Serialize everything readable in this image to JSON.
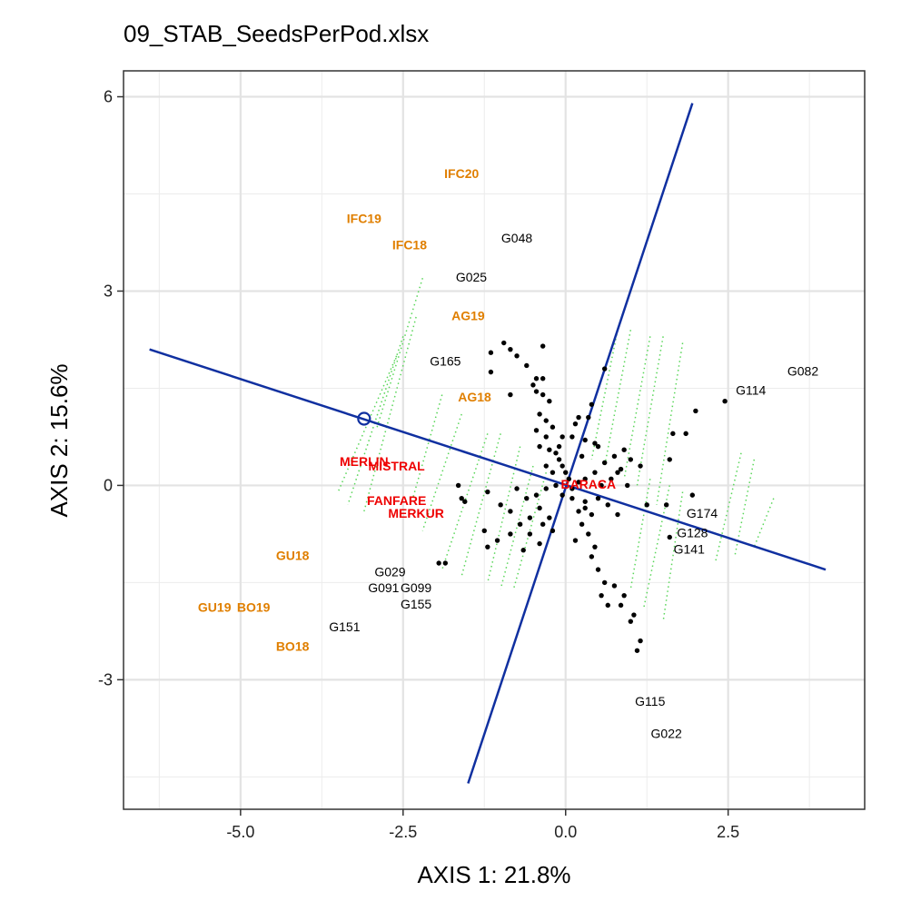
{
  "chart_data": {
    "type": "scatter",
    "title": "09_STAB_SeedsPerPod.xlsx",
    "xlabel": "AXIS 1: 21.8%",
    "ylabel": "AXIS 2: 15.6%",
    "xlim": [
      -6.8,
      4.6
    ],
    "ylim": [
      -5.0,
      6.4
    ],
    "xticks": [
      -5.0,
      -2.5,
      0.0,
      2.5
    ],
    "xtick_labels": [
      "-5.0",
      "-2.5",
      "0.0",
      "2.5"
    ],
    "yticks": [
      -3,
      0,
      3,
      6
    ],
    "ytick_labels": [
      "-3",
      "0",
      "3",
      "6"
    ],
    "grid": true,
    "colors": {
      "environment": "#e07f00",
      "check": "#ee0000",
      "genotype": "#000000",
      "axis_line": "#1030a0",
      "projection": "#5ad65a"
    },
    "environments": [
      {
        "label": "IFC20",
        "x": -1.6,
        "y": 4.8
      },
      {
        "label": "IFC19",
        "x": -3.1,
        "y": 4.1
      },
      {
        "label": "IFC18",
        "x": -2.4,
        "y": 3.7
      },
      {
        "label": "AG19",
        "x": -1.5,
        "y": 2.6
      },
      {
        "label": "AG18",
        "x": -1.4,
        "y": 1.35
      },
      {
        "label": "GU18",
        "x": -4.2,
        "y": -1.1
      },
      {
        "label": "GU19",
        "x": -5.4,
        "y": -1.9
      },
      {
        "label": "BO19",
        "x": -4.8,
        "y": -1.9
      },
      {
        "label": "BO18",
        "x": -4.2,
        "y": -2.5
      }
    ],
    "checks": [
      {
        "label": "MERLIN",
        "x": -3.1,
        "y": 0.35
      },
      {
        "label": "MISTRAL",
        "x": -2.6,
        "y": 0.28
      },
      {
        "label": "FANFARE",
        "x": -2.6,
        "y": -0.25
      },
      {
        "label": "MERKUR",
        "x": -2.3,
        "y": -0.45
      },
      {
        "label": "BARACA",
        "x": 0.35,
        "y": 0.0
      }
    ],
    "labeled_genotypes": [
      {
        "label": "G048",
        "x": -0.75,
        "y": 3.8
      },
      {
        "label": "G025",
        "x": -1.45,
        "y": 3.2
      },
      {
        "label": "G165",
        "x": -1.85,
        "y": 1.9
      },
      {
        "label": "G082",
        "x": 3.65,
        "y": 1.75
      },
      {
        "label": "G114",
        "x": 2.85,
        "y": 1.45
      },
      {
        "label": "G174",
        "x": 2.1,
        "y": -0.45
      },
      {
        "label": "G128",
        "x": 1.95,
        "y": -0.75
      },
      {
        "label": "G141",
        "x": 1.9,
        "y": -1.0
      },
      {
        "label": "G029",
        "x": -2.7,
        "y": -1.35
      },
      {
        "label": "G091",
        "x": -2.8,
        "y": -1.6
      },
      {
        "label": "G099",
        "x": -2.3,
        "y": -1.6
      },
      {
        "label": "G155",
        "x": -2.3,
        "y": -1.85
      },
      {
        "label": "G151",
        "x": -3.4,
        "y": -2.2
      },
      {
        "label": "G115",
        "x": 1.3,
        "y": -3.35
      },
      {
        "label": "G022",
        "x": 1.55,
        "y": -3.85
      }
    ],
    "genotype_points": [
      {
        "x": -0.95,
        "y": 2.2
      },
      {
        "x": -1.15,
        "y": 2.05
      },
      {
        "x": -0.85,
        "y": 2.1
      },
      {
        "x": -0.35,
        "y": 2.15
      },
      {
        "x": -0.75,
        "y": 2.0
      },
      {
        "x": -0.6,
        "y": 1.85
      },
      {
        "x": -1.15,
        "y": 1.75
      },
      {
        "x": -0.45,
        "y": 1.65
      },
      {
        "x": -0.35,
        "y": 1.65
      },
      {
        "x": -0.5,
        "y": 1.55
      },
      {
        "x": -0.85,
        "y": 1.4
      },
      {
        "x": -0.45,
        "y": 1.45
      },
      {
        "x": -0.35,
        "y": 1.4
      },
      {
        "x": -0.25,
        "y": 1.3
      },
      {
        "x": 0.6,
        "y": 1.8
      },
      {
        "x": 0.4,
        "y": 1.25
      },
      {
        "x": 0.35,
        "y": 1.05
      },
      {
        "x": 0.15,
        "y": 0.95
      },
      {
        "x": 0.2,
        "y": 1.05
      },
      {
        "x": -0.4,
        "y": 1.1
      },
      {
        "x": -0.3,
        "y": 1.0
      },
      {
        "x": -0.2,
        "y": 0.9
      },
      {
        "x": -0.45,
        "y": 0.85
      },
      {
        "x": -0.3,
        "y": 0.75
      },
      {
        "x": -0.4,
        "y": 0.6
      },
      {
        "x": -0.25,
        "y": 0.55
      },
      {
        "x": -0.15,
        "y": 0.5
      },
      {
        "x": -0.1,
        "y": 0.4
      },
      {
        "x": -0.05,
        "y": 0.3
      },
      {
        "x": 0.0,
        "y": 0.2
      },
      {
        "x": 0.05,
        "y": 0.1
      },
      {
        "x": -0.3,
        "y": 0.3
      },
      {
        "x": -0.2,
        "y": 0.2
      },
      {
        "x": -0.15,
        "y": 0.0
      },
      {
        "x": 0.1,
        "y": -0.05
      },
      {
        "x": 0.2,
        "y": 0.05
      },
      {
        "x": 0.3,
        "y": 0.1
      },
      {
        "x": 0.45,
        "y": 0.2
      },
      {
        "x": 0.6,
        "y": 0.35
      },
      {
        "x": 0.75,
        "y": 0.45
      },
      {
        "x": 0.9,
        "y": 0.55
      },
      {
        "x": 1.0,
        "y": 0.4
      },
      {
        "x": 0.85,
        "y": 0.25
      },
      {
        "x": 1.15,
        "y": 0.3
      },
      {
        "x": 0.7,
        "y": 0.1
      },
      {
        "x": 0.55,
        "y": 0.0
      },
      {
        "x": 0.95,
        "y": 0.0
      },
      {
        "x": 0.8,
        "y": 0.2
      },
      {
        "x": 0.5,
        "y": 0.6
      },
      {
        "x": 0.3,
        "y": 0.7
      },
      {
        "x": 0.25,
        "y": 0.45
      },
      {
        "x": 0.45,
        "y": 0.65
      },
      {
        "x": 1.65,
        "y": 0.8
      },
      {
        "x": 1.85,
        "y": 0.8
      },
      {
        "x": 2.0,
        "y": 1.15
      },
      {
        "x": 2.45,
        "y": 1.3
      },
      {
        "x": 1.6,
        "y": 0.4
      },
      {
        "x": -1.65,
        "y": 0.0
      },
      {
        "x": -1.6,
        "y": -0.2
      },
      {
        "x": -1.2,
        "y": -0.1
      },
      {
        "x": -1.0,
        "y": -0.3
      },
      {
        "x": -0.85,
        "y": -0.4
      },
      {
        "x": -0.6,
        "y": -0.2
      },
      {
        "x": -0.75,
        "y": -0.05
      },
      {
        "x": -0.45,
        "y": -0.15
      },
      {
        "x": -0.3,
        "y": -0.05
      },
      {
        "x": -0.4,
        "y": -0.35
      },
      {
        "x": -0.25,
        "y": -0.5
      },
      {
        "x": -0.55,
        "y": -0.5
      },
      {
        "x": -0.7,
        "y": -0.6
      },
      {
        "x": -0.55,
        "y": -0.75
      },
      {
        "x": -0.35,
        "y": -0.6
      },
      {
        "x": -0.2,
        "y": -0.7
      },
      {
        "x": -0.85,
        "y": -0.75
      },
      {
        "x": -1.05,
        "y": -0.85
      },
      {
        "x": -1.25,
        "y": -0.7
      },
      {
        "x": -1.2,
        "y": -0.95
      },
      {
        "x": -0.65,
        "y": -1.0
      },
      {
        "x": -0.4,
        "y": -0.9
      },
      {
        "x": -1.85,
        "y": -1.2
      },
      {
        "x": -1.95,
        "y": -1.2
      },
      {
        "x": -1.55,
        "y": -0.25
      },
      {
        "x": 0.2,
        "y": -0.4
      },
      {
        "x": 0.3,
        "y": -0.25
      },
      {
        "x": 0.4,
        "y": -0.45
      },
      {
        "x": 0.25,
        "y": -0.6
      },
      {
        "x": 0.35,
        "y": -0.75
      },
      {
        "x": 0.15,
        "y": -0.85
      },
      {
        "x": 0.45,
        "y": -0.95
      },
      {
        "x": 0.4,
        "y": -1.1
      },
      {
        "x": 0.5,
        "y": -1.3
      },
      {
        "x": 0.6,
        "y": -1.5
      },
      {
        "x": 0.55,
        "y": -1.7
      },
      {
        "x": 0.65,
        "y": -1.85
      },
      {
        "x": 0.85,
        "y": -1.85
      },
      {
        "x": 0.75,
        "y": -1.55
      },
      {
        "x": 0.9,
        "y": -1.7
      },
      {
        "x": 1.05,
        "y": -2.0
      },
      {
        "x": 1.0,
        "y": -2.1
      },
      {
        "x": 1.15,
        "y": -2.4
      },
      {
        "x": 1.1,
        "y": -2.55
      },
      {
        "x": 0.3,
        "y": -0.35
      },
      {
        "x": 0.65,
        "y": -0.3
      },
      {
        "x": 0.8,
        "y": -0.45
      },
      {
        "x": 0.5,
        "y": -0.2
      },
      {
        "x": -0.1,
        "y": 0.6
      },
      {
        "x": 0.1,
        "y": 0.75
      },
      {
        "x": -0.05,
        "y": 0.75
      },
      {
        "x": 1.25,
        "y": -0.3
      },
      {
        "x": 1.55,
        "y": -0.3
      },
      {
        "x": 1.95,
        "y": -0.15
      },
      {
        "x": 1.6,
        "y": -0.8
      },
      {
        "x": -0.05,
        "y": -0.15
      },
      {
        "x": 0.1,
        "y": -0.2
      }
    ],
    "biplot_lines": [
      {
        "x1": -6.4,
        "y1": 2.1,
        "x2": 4.0,
        "y2": -1.3
      },
      {
        "x1": -1.5,
        "y1": -4.6,
        "x2": 1.95,
        "y2": 5.9
      }
    ],
    "average_environment_marker": {
      "x": -3.1,
      "y": 1.03
    },
    "projection_segments": [
      {
        "x1": -2.2,
        "y1": 3.2,
        "x2": -2.9,
        "y2": 0.9
      },
      {
        "x1": -2.3,
        "y1": 2.6,
        "x2": -3.1,
        "y2": -0.4
      },
      {
        "x1": -2.5,
        "y1": 2.3,
        "x2": -3.35,
        "y2": -0.3
      },
      {
        "x1": -2.6,
        "y1": 2.0,
        "x2": -3.5,
        "y2": -0.1
      },
      {
        "x1": -1.9,
        "y1": 1.4,
        "x2": -2.35,
        "y2": -0.2
      },
      {
        "x1": -1.6,
        "y1": 1.1,
        "x2": -2.2,
        "y2": -0.7
      },
      {
        "x1": -1.2,
        "y1": 0.8,
        "x2": -1.9,
        "y2": -1.3
      },
      {
        "x1": -1.0,
        "y1": 0.8,
        "x2": -1.6,
        "y2": -1.4
      },
      {
        "x1": -0.7,
        "y1": 0.6,
        "x2": -1.2,
        "y2": -1.5
      },
      {
        "x1": -0.5,
        "y1": 0.3,
        "x2": -1.0,
        "y2": -1.6
      },
      {
        "x1": -0.3,
        "y1": 0.2,
        "x2": -0.8,
        "y2": -1.6
      },
      {
        "x1": 0.8,
        "y1": 2.4,
        "x2": 0.4,
        "y2": 0.4
      },
      {
        "x1": 1.0,
        "y1": 2.4,
        "x2": 0.6,
        "y2": 0.3
      },
      {
        "x1": 1.3,
        "y1": 2.3,
        "x2": 0.9,
        "y2": 0.1
      },
      {
        "x1": 1.5,
        "y1": 2.3,
        "x2": 1.1,
        "y2": 0.0
      },
      {
        "x1": 1.8,
        "y1": 2.2,
        "x2": 1.4,
        "y2": -0.3
      },
      {
        "x1": 1.3,
        "y1": 0.1,
        "x2": 1.0,
        "y2": -1.6
      },
      {
        "x1": 1.6,
        "y1": 0.0,
        "x2": 1.2,
        "y2": -1.9
      },
      {
        "x1": 1.8,
        "y1": -0.1,
        "x2": 1.5,
        "y2": -2.1
      },
      {
        "x1": 2.7,
        "y1": 0.5,
        "x2": 2.3,
        "y2": -1.2
      },
      {
        "x1": 2.9,
        "y1": 0.4,
        "x2": 2.6,
        "y2": -1.1
      },
      {
        "x1": 3.2,
        "y1": -0.2,
        "x2": 2.9,
        "y2": -0.95
      }
    ]
  }
}
